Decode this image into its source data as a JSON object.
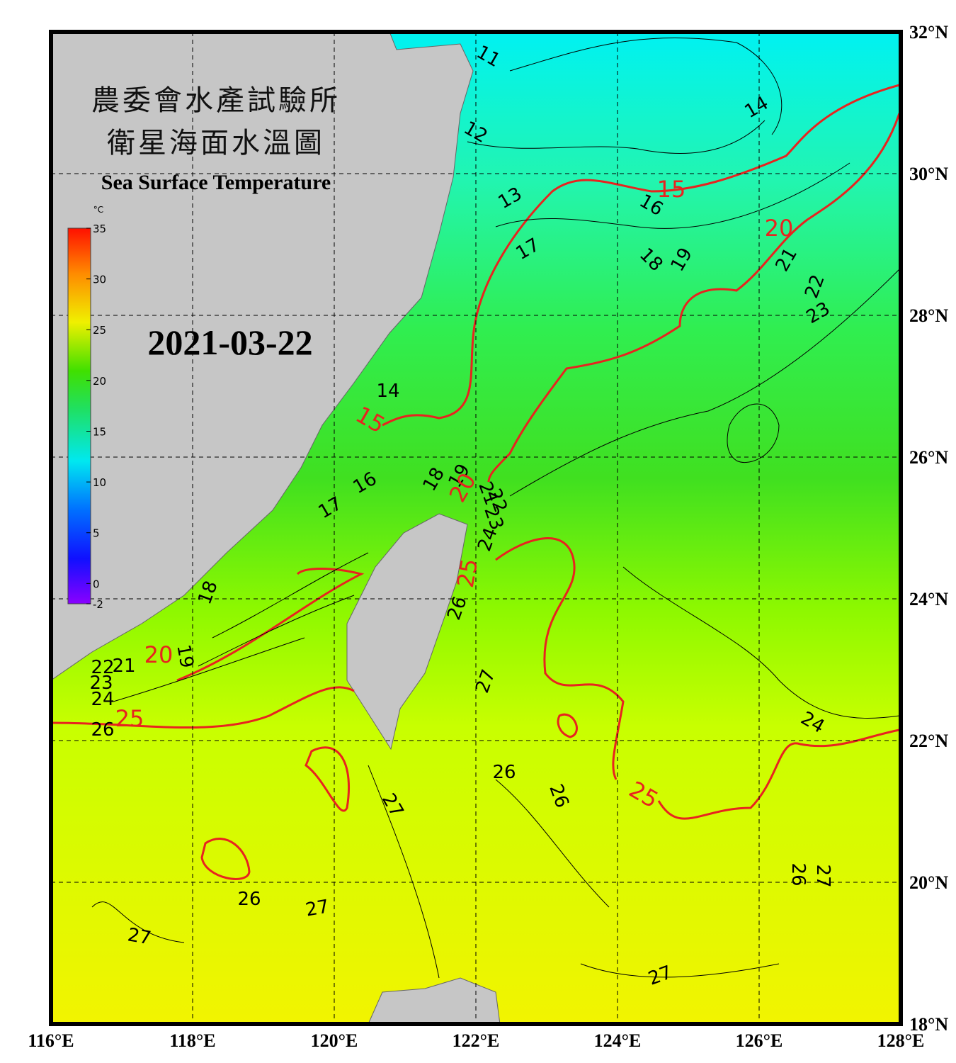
{
  "header": {
    "title_lines": [
      "農委會水產試驗所",
      "衛星海面水溫圖"
    ],
    "subtitle": "Sea Surface Temperature",
    "date": "2021-03-22"
  },
  "colorbar": {
    "unit": "°C",
    "range": [
      -2,
      35
    ],
    "ticks": [
      35,
      30,
      25,
      20,
      15,
      10,
      5,
      0,
      -2
    ]
  },
  "map": {
    "xlim": [
      116,
      128
    ],
    "ylim": [
      18,
      32
    ],
    "xticks": [
      {
        "value": 116,
        "label": "116°E"
      },
      {
        "value": 118,
        "label": "118°E"
      },
      {
        "value": 120,
        "label": "120°E"
      },
      {
        "value": 122,
        "label": "122°E"
      },
      {
        "value": 124,
        "label": "124°E"
      },
      {
        "value": 126,
        "label": "126°E"
      },
      {
        "value": 128,
        "label": "128°E"
      }
    ],
    "yticks": [
      {
        "value": 18,
        "label": "18°N"
      },
      {
        "value": 20,
        "label": "20°N"
      },
      {
        "value": 22,
        "label": "22°N"
      },
      {
        "value": 24,
        "label": "24°N"
      },
      {
        "value": 26,
        "label": "26°N"
      },
      {
        "value": 28,
        "label": "28°N"
      },
      {
        "value": 30,
        "label": "30°N"
      },
      {
        "value": 32,
        "label": "32°N"
      }
    ],
    "contour_labels": [
      {
        "text": "11",
        "color": "#000000"
      },
      {
        "text": "12",
        "color": "#000000"
      },
      {
        "text": "13",
        "color": "#000000"
      },
      {
        "text": "14",
        "color": "#000000"
      },
      {
        "text": "15",
        "color": "#e8231f"
      },
      {
        "text": "16",
        "color": "#000000"
      },
      {
        "text": "17",
        "color": "#000000"
      },
      {
        "text": "18",
        "color": "#000000"
      },
      {
        "text": "19",
        "color": "#000000"
      },
      {
        "text": "20",
        "color": "#e8231f"
      },
      {
        "text": "21",
        "color": "#000000"
      },
      {
        "text": "22",
        "color": "#000000"
      },
      {
        "text": "23",
        "color": "#000000"
      },
      {
        "text": "14",
        "color": "#000000"
      },
      {
        "text": "15",
        "color": "#e8231f"
      },
      {
        "text": "16",
        "color": "#000000"
      },
      {
        "text": "17",
        "color": "#000000"
      },
      {
        "text": "18",
        "color": "#000000"
      },
      {
        "text": "19",
        "color": "#000000"
      },
      {
        "text": "20",
        "color": "#e8231f"
      },
      {
        "text": "18",
        "color": "#000000"
      },
      {
        "text": "20",
        "color": "#e8231f"
      },
      {
        "text": "19",
        "color": "#000000"
      },
      {
        "text": "21",
        "color": "#000000"
      },
      {
        "text": "22",
        "color": "#000000"
      },
      {
        "text": "23",
        "color": "#000000"
      },
      {
        "text": "24",
        "color": "#000000"
      },
      {
        "text": "25",
        "color": "#e8231f"
      },
      {
        "text": "26",
        "color": "#000000"
      },
      {
        "text": "26",
        "color": "#000000"
      },
      {
        "text": "25",
        "color": "#e8231f"
      },
      {
        "text": "27",
        "color": "#000000"
      },
      {
        "text": "26",
        "color": "#000000"
      },
      {
        "text": "27",
        "color": "#000000"
      },
      {
        "text": "26",
        "color": "#000000"
      },
      {
        "text": "25",
        "color": "#e8231f"
      },
      {
        "text": "24",
        "color": "#000000"
      },
      {
        "text": "26",
        "color": "#000000"
      },
      {
        "text": "27",
        "color": "#000000"
      },
      {
        "text": "27",
        "color": "#000000"
      },
      {
        "text": "27",
        "color": "#000000"
      },
      {
        "text": "26",
        "color": "#000000"
      },
      {
        "text": "27",
        "color": "#000000"
      },
      {
        "text": "21",
        "color": "#000000"
      },
      {
        "text": "22",
        "color": "#000000"
      },
      {
        "text": "23",
        "color": "#000000"
      },
      {
        "text": "24",
        "color": "#000000"
      }
    ]
  }
}
